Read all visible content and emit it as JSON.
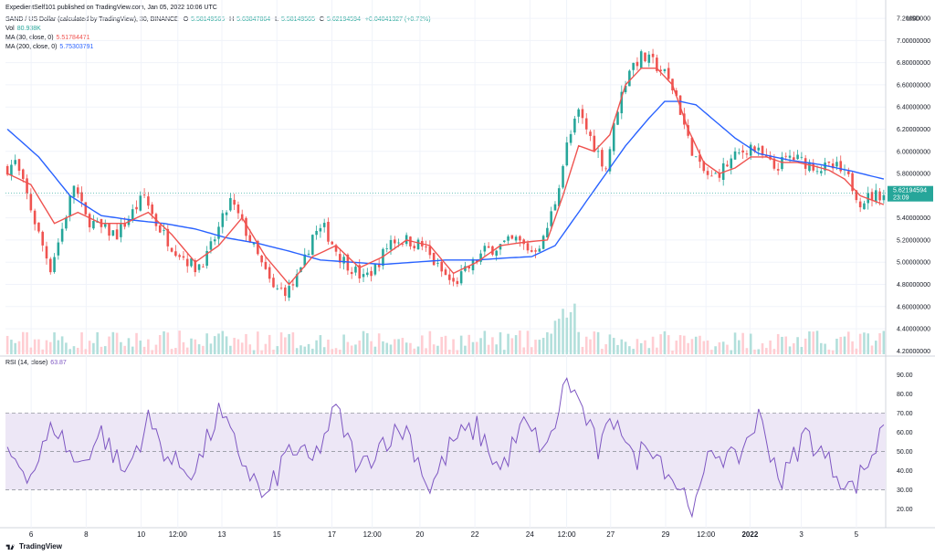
{
  "header": {
    "published": "ExpedientSelf101 published on TradingView.com, Jan 05, 2022 10:06 UTC",
    "symbol": "SAND / US Dollar (calculated by TradingView), 30, BINANCE",
    "o_label": "O",
    "o": "5.58149565",
    "h_label": "H",
    "h": "5.63847864",
    "l_label": "L",
    "l": "5.58149565",
    "c_label": "C",
    "c": "5.62194594",
    "change": "+0.04041327 (+0.72%)",
    "vol_label": "Vol",
    "vol": "80.938K",
    "ma30_label": "MA (30, close, 0)",
    "ma30": "5.51784471",
    "ma200_label": "MA (200, close, 0)",
    "ma200": "5.75303791",
    "rsi_label": "RSI (14, close)",
    "rsi": "63.87"
  },
  "price_axis": {
    "currency": "USD",
    "ticks": [
      "7.20000000",
      "7.00000000",
      "6.80000000",
      "6.60000000",
      "6.40000000",
      "6.20000000",
      "6.00000000",
      "5.80000000",
      "5.60000000",
      "5.40000000",
      "5.20000000",
      "5.00000000",
      "4.80000000",
      "4.60000000",
      "4.40000000",
      "4.20000000"
    ],
    "current_price": "5.62194594",
    "countdown": "23:09"
  },
  "rsi_axis": {
    "ticks": [
      "90.00",
      "80.00",
      "70.00",
      "60.00",
      "50.00",
      "40.00",
      "30.00",
      "20.00"
    ]
  },
  "time_axis": {
    "labels": [
      "6",
      "8",
      "10",
      "12:00",
      "13",
      "15",
      "17",
      "12:00",
      "20",
      "22",
      "24",
      "12:00",
      "27",
      "29",
      "12:00",
      "2022",
      "3",
      "5"
    ]
  },
  "footer": {
    "brand": "TradingView"
  },
  "colors": {
    "up": "#26a69a",
    "down": "#ef5350",
    "ma30": "#ef5350",
    "ma200": "#2962ff",
    "rsi": "#7e57c2",
    "rsi_band": "#ede7f6",
    "volume_up": "#b2dfdb",
    "volume_down": "#ffcdd2"
  },
  "chart_data": [
    {
      "type": "candlestick",
      "title": "SAND / US Dollar (calculated by TradingView), 30, BINANCE",
      "ylim": [
        4.17,
        7.25
      ],
      "x": [
        "6",
        "8",
        "10",
        "12:00",
        "13",
        "15",
        "17",
        "12:00",
        "20",
        "22",
        "24",
        "12:00",
        "27",
        "29",
        "12:00",
        "2022",
        "3",
        "5"
      ],
      "close_path": [
        [
          0,
          5.85
        ],
        [
          2,
          5.9
        ],
        [
          5,
          5.6
        ],
        [
          8,
          5.25
        ],
        [
          11,
          4.95
        ],
        [
          14,
          5.3
        ],
        [
          17,
          5.7
        ],
        [
          20,
          5.4
        ],
        [
          24,
          5.3
        ],
        [
          28,
          5.25
        ],
        [
          32,
          5.45
        ],
        [
          35,
          5.6
        ],
        [
          38,
          5.35
        ],
        [
          42,
          5.15
        ],
        [
          45,
          5.05
        ],
        [
          48,
          4.95
        ],
        [
          51,
          5.05
        ],
        [
          54,
          5.3
        ],
        [
          57,
          5.55
        ],
        [
          60,
          5.35
        ],
        [
          64,
          5.05
        ],
        [
          68,
          4.75
        ],
        [
          72,
          4.75
        ],
        [
          75,
          4.9
        ],
        [
          78,
          5.25
        ],
        [
          81,
          5.3
        ],
        [
          85,
          5.05
        ],
        [
          88,
          4.95
        ],
        [
          91,
          4.85
        ],
        [
          94,
          4.95
        ],
        [
          98,
          5.2
        ],
        [
          102,
          5.2
        ],
        [
          106,
          5.15
        ],
        [
          110,
          4.95
        ],
        [
          114,
          4.8
        ],
        [
          118,
          4.95
        ],
        [
          122,
          5.1
        ],
        [
          126,
          5.15
        ],
        [
          130,
          5.2
        ],
        [
          134,
          5.1
        ],
        [
          137,
          5.2
        ],
        [
          140,
          5.55
        ],
        [
          143,
          6.05
        ],
        [
          146,
          6.35
        ],
        [
          150,
          6.05
        ],
        [
          153,
          5.85
        ],
        [
          156,
          6.4
        ],
        [
          159,
          6.75
        ],
        [
          162,
          6.85
        ],
        [
          165,
          6.8
        ],
        [
          168,
          6.7
        ],
        [
          171,
          6.5
        ],
        [
          174,
          6.1
        ],
        [
          177,
          5.85
        ],
        [
          180,
          5.75
        ],
        [
          183,
          5.85
        ],
        [
          186,
          5.95
        ],
        [
          190,
          6.05
        ],
        [
          193,
          5.95
        ],
        [
          196,
          5.85
        ],
        [
          200,
          5.95
        ],
        [
          204,
          5.9
        ],
        [
          208,
          5.85
        ],
        [
          212,
          5.85
        ],
        [
          215,
          5.75
        ],
        [
          218,
          5.55
        ],
        [
          221,
          5.6
        ],
        [
          224,
          5.62
        ]
      ],
      "ma30": [
        [
          0,
          5.8
        ],
        [
          6,
          5.7
        ],
        [
          12,
          5.35
        ],
        [
          18,
          5.45
        ],
        [
          24,
          5.35
        ],
        [
          30,
          5.35
        ],
        [
          36,
          5.45
        ],
        [
          42,
          5.25
        ],
        [
          48,
          5.0
        ],
        [
          54,
          5.15
        ],
        [
          60,
          5.4
        ],
        [
          66,
          5.05
        ],
        [
          72,
          4.8
        ],
        [
          78,
          5.05
        ],
        [
          84,
          5.15
        ],
        [
          90,
          4.95
        ],
        [
          96,
          5.05
        ],
        [
          102,
          5.2
        ],
        [
          108,
          5.15
        ],
        [
          114,
          4.9
        ],
        [
          120,
          5.0
        ],
        [
          126,
          5.15
        ],
        [
          132,
          5.18
        ],
        [
          138,
          5.2
        ],
        [
          142,
          5.6
        ],
        [
          146,
          6.05
        ],
        [
          150,
          6.0
        ],
        [
          154,
          6.15
        ],
        [
          158,
          6.6
        ],
        [
          162,
          6.75
        ],
        [
          166,
          6.75
        ],
        [
          170,
          6.6
        ],
        [
          174,
          6.2
        ],
        [
          178,
          5.9
        ],
        [
          182,
          5.8
        ],
        [
          186,
          5.85
        ],
        [
          190,
          5.95
        ],
        [
          194,
          5.95
        ],
        [
          198,
          5.9
        ],
        [
          202,
          5.9
        ],
        [
          206,
          5.87
        ],
        [
          210,
          5.83
        ],
        [
          214,
          5.75
        ],
        [
          218,
          5.6
        ],
        [
          224,
          5.52
        ]
      ],
      "ma200": [
        [
          0,
          6.2
        ],
        [
          8,
          5.95
        ],
        [
          16,
          5.6
        ],
        [
          24,
          5.42
        ],
        [
          32,
          5.38
        ],
        [
          40,
          5.35
        ],
        [
          48,
          5.3
        ],
        [
          56,
          5.22
        ],
        [
          64,
          5.17
        ],
        [
          72,
          5.1
        ],
        [
          80,
          5.02
        ],
        [
          88,
          5.0
        ],
        [
          96,
          4.98
        ],
        [
          104,
          5.0
        ],
        [
          112,
          5.02
        ],
        [
          120,
          5.02
        ],
        [
          128,
          5.04
        ],
        [
          134,
          5.05
        ],
        [
          140,
          5.15
        ],
        [
          146,
          5.45
        ],
        [
          152,
          5.75
        ],
        [
          158,
          6.05
        ],
        [
          164,
          6.3
        ],
        [
          168,
          6.45
        ],
        [
          172,
          6.45
        ],
        [
          176,
          6.42
        ],
        [
          180,
          6.3
        ],
        [
          186,
          6.12
        ],
        [
          192,
          5.98
        ],
        [
          200,
          5.92
        ],
        [
          208,
          5.88
        ],
        [
          216,
          5.82
        ],
        [
          224,
          5.75
        ]
      ]
    },
    {
      "type": "line",
      "title": "RSI (14, close)",
      "ylim": [
        14,
        95
      ],
      "levels": [
        70,
        50,
        30
      ],
      "rsi_path": [
        [
          0,
          50
        ],
        [
          6,
          38
        ],
        [
          12,
          64
        ],
        [
          18,
          42
        ],
        [
          24,
          60
        ],
        [
          30,
          38
        ],
        [
          36,
          66
        ],
        [
          42,
          44
        ],
        [
          48,
          40
        ],
        [
          54,
          70
        ],
        [
          60,
          46
        ],
        [
          66,
          24
        ],
        [
          72,
          52
        ],
        [
          78,
          44
        ],
        [
          84,
          72
        ],
        [
          90,
          40
        ],
        [
          96,
          56
        ],
        [
          102,
          62
        ],
        [
          108,
          30
        ],
        [
          114,
          56
        ],
        [
          120,
          62
        ],
        [
          126,
          40
        ],
        [
          132,
          64
        ],
        [
          138,
          50
        ],
        [
          143,
          88
        ],
        [
          147,
          72
        ],
        [
          151,
          50
        ],
        [
          156,
          70
        ],
        [
          160,
          44
        ],
        [
          164,
          56
        ],
        [
          170,
          36
        ],
        [
          176,
          20
        ],
        [
          180,
          52
        ],
        [
          186,
          44
        ],
        [
          192,
          68
        ],
        [
          198,
          34
        ],
        [
          204,
          60
        ],
        [
          210,
          44
        ],
        [
          216,
          30
        ],
        [
          222,
          52
        ],
        [
          224,
          63.87
        ]
      ]
    }
  ]
}
